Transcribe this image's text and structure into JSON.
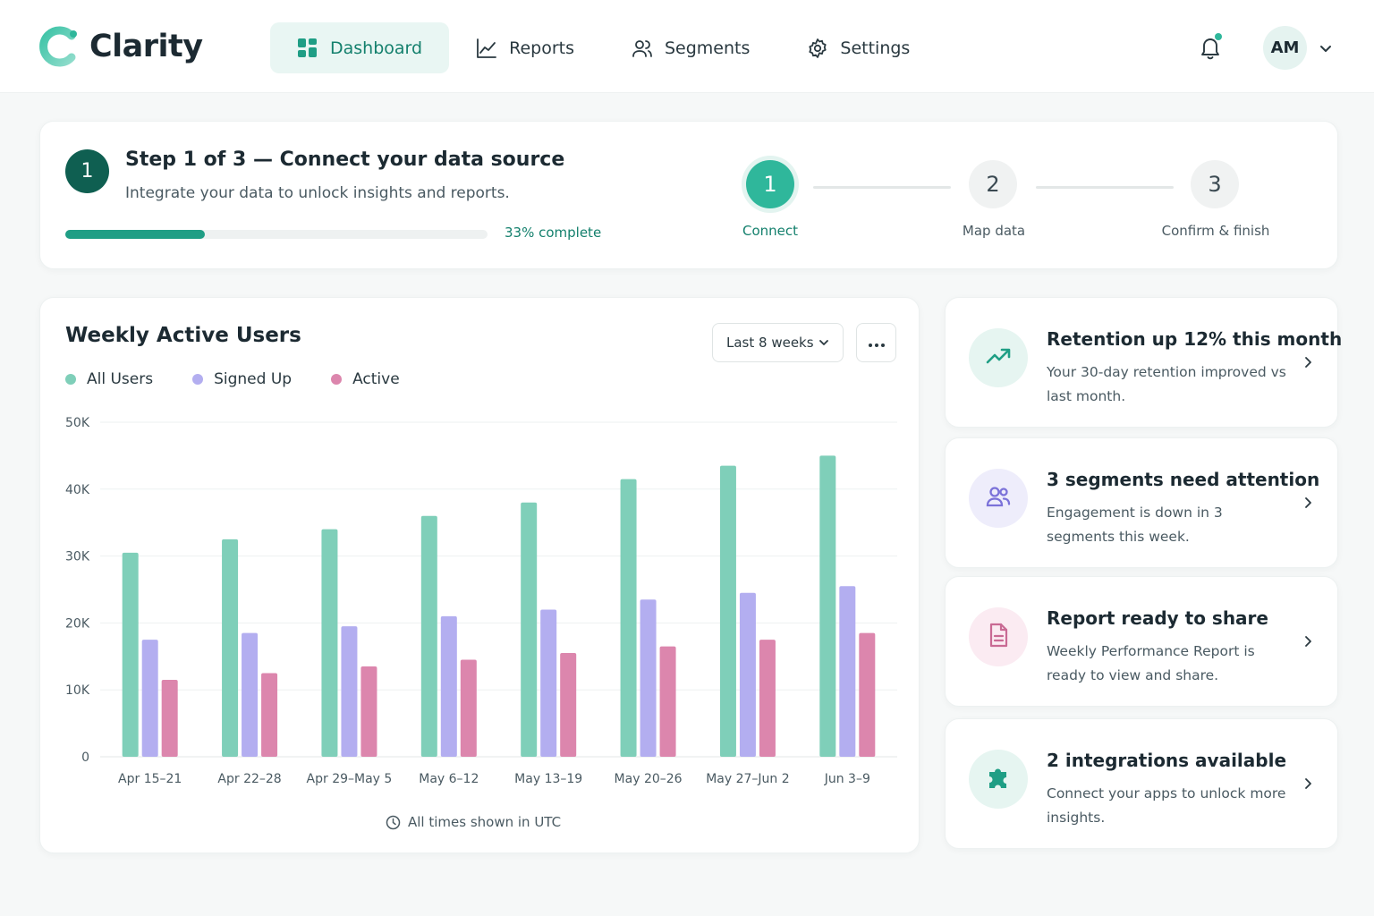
{
  "app": {
    "name": "Clarity",
    "colors": {
      "accent": "#1f9e85",
      "accent_dark": "#0f5f51",
      "teal": "#7fcfb9",
      "lavender": "#b3aef0",
      "pink": "#dc86ad"
    }
  },
  "nav": {
    "items": [
      {
        "label": "Dashboard",
        "icon": "dashboard-grid-icon",
        "active": true
      },
      {
        "label": "Reports",
        "icon": "line-chart-icon",
        "active": false
      },
      {
        "label": "Segments",
        "icon": "users-icon",
        "active": false
      },
      {
        "label": "Settings",
        "icon": "gear-icon",
        "active": false
      }
    ],
    "user_initials": "AM"
  },
  "onboarding": {
    "step_number": "1",
    "title": "Step 1 of 3 — Connect your data source",
    "subtitle": "Integrate your data to unlock insights and reports.",
    "progress_fraction": 0.33,
    "progress_text": "33% complete",
    "steps": [
      {
        "number": "1",
        "label": "Connect",
        "active": true
      },
      {
        "number": "2",
        "label": "Map data",
        "active": false
      },
      {
        "number": "3",
        "label": "Confirm & finish",
        "active": false
      }
    ]
  },
  "chart_card": {
    "title": "Weekly Active Users",
    "range_label": "Last 8 weeks",
    "footer": "All times shown in UTC"
  },
  "chart_data": {
    "type": "bar",
    "title": "Weekly Active Users",
    "categories": [
      "Apr 15–21",
      "Apr 22–28",
      "Apr 29–May 5",
      "May 6–12",
      "May 13–19",
      "May 20–26",
      "May 27–Jun 2",
      "Jun 3–9"
    ],
    "series": [
      {
        "name": "All Users",
        "color": "#7fcfb9",
        "values": [
          30500,
          32500,
          34000,
          36000,
          38000,
          41500,
          43500,
          45000
        ]
      },
      {
        "name": "Signed Up",
        "color": "#b3aef0",
        "values": [
          17500,
          18500,
          19500,
          21000,
          22000,
          23500,
          24500,
          25500
        ]
      },
      {
        "name": "Active",
        "color": "#dc86ad",
        "values": [
          11500,
          12500,
          13500,
          14500,
          15500,
          16500,
          17500,
          18500
        ]
      }
    ],
    "ylim": [
      0,
      50000
    ],
    "yticks": [
      0,
      10000,
      20000,
      30000,
      40000,
      50000
    ],
    "ytick_labels": [
      "0",
      "10K",
      "20K",
      "30K",
      "40K",
      "50K"
    ],
    "grid": true,
    "legend": "top-left"
  },
  "insights": [
    {
      "title": "Retention up 12% this month",
      "body": "Your 30-day retention improved vs last month.",
      "icon": "trend-up-icon",
      "tint": "#e6f5f1",
      "icon_color": "#1f9e85"
    },
    {
      "title": "3 segments need attention",
      "body": "Engagement is down in 3 segments this week.",
      "icon": "users-icon",
      "tint": "#eeedfb",
      "icon_color": "#7b72d9"
    },
    {
      "title": "Report ready to share",
      "body": "Weekly Performance Report is ready to view and share.",
      "icon": "document-icon",
      "tint": "#fbebf2",
      "icon_color": "#c96a94"
    },
    {
      "title": "2 integrations available",
      "body": "Connect your apps to unlock more insights.",
      "icon": "puzzle-icon",
      "tint": "#e6f5f1",
      "icon_color": "#1f9e85"
    }
  ]
}
